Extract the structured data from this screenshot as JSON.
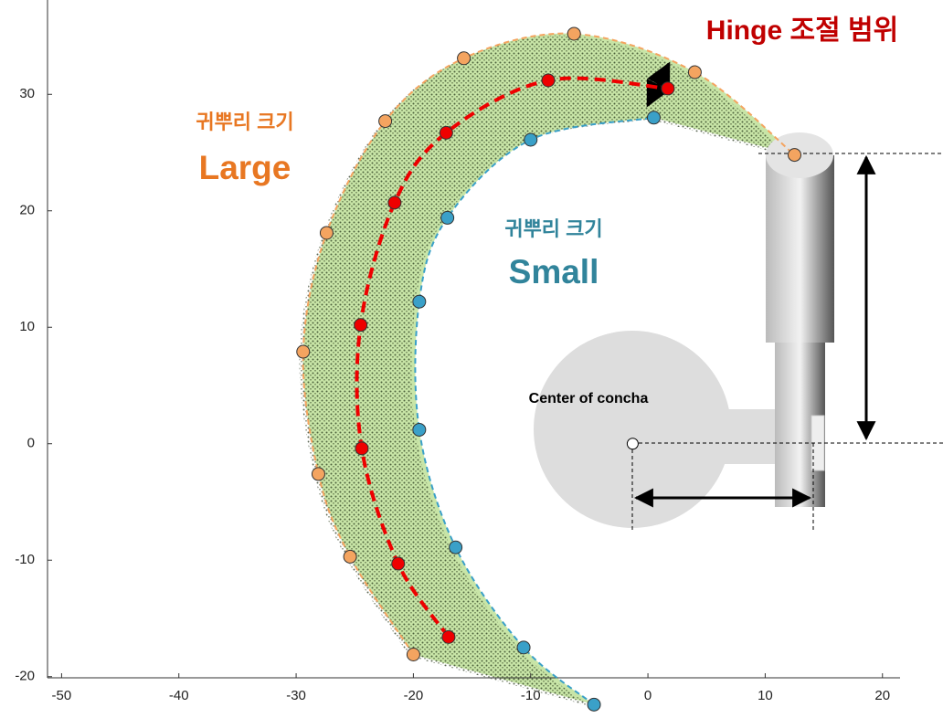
{
  "chart_data": {
    "type": "line",
    "title": "Hinge 조절 범위",
    "annotations": [
      {
        "text": "귀뿌리 크기",
        "sub": "Large",
        "color": "#e87722"
      },
      {
        "text": "귀뿌리 크기",
        "sub": "Small",
        "color": "#31849b"
      }
    ],
    "center": {
      "label": "Center of concha",
      "x": -1.3,
      "y": 0
    },
    "xlim": [
      -51.2,
      21.5
    ],
    "ylim": [
      -20.1,
      38.1
    ],
    "xticks": [
      -50,
      -40,
      -30,
      -20,
      -10,
      0,
      10,
      20
    ],
    "yticks": [
      -20,
      -10,
      0,
      10,
      20,
      30
    ],
    "series": [
      {
        "color": "#f4a460",
        "x": [
          -20.0,
          -25.4,
          -28.1,
          -29.4,
          -27.4,
          -22.4,
          -15.7,
          -6.3,
          4.0,
          12.5
        ],
        "values": [
          -18.1,
          -9.7,
          -2.6,
          7.9,
          18.1,
          27.7,
          33.1,
          35.2,
          31.9,
          24.8
        ]
      },
      {
        "color": "#ee0000",
        "x": [
          -17.0,
          -21.3,
          -24.4,
          -24.5,
          -21.6,
          -17.2,
          -8.5,
          1.7
        ],
        "values": [
          -16.6,
          -10.3,
          -0.4,
          10.2,
          20.7,
          26.7,
          31.2,
          30.5
        ]
      },
      {
        "color": "#3aa0c8",
        "x": [
          -4.6,
          -10.6,
          -16.4,
          -19.5,
          -19.5,
          -17.1,
          -10.0,
          0.5
        ],
        "values": [
          -22.4,
          -17.5,
          -8.9,
          1.2,
          12.2,
          19.4,
          26.1,
          28.0
        ]
      }
    ]
  }
}
